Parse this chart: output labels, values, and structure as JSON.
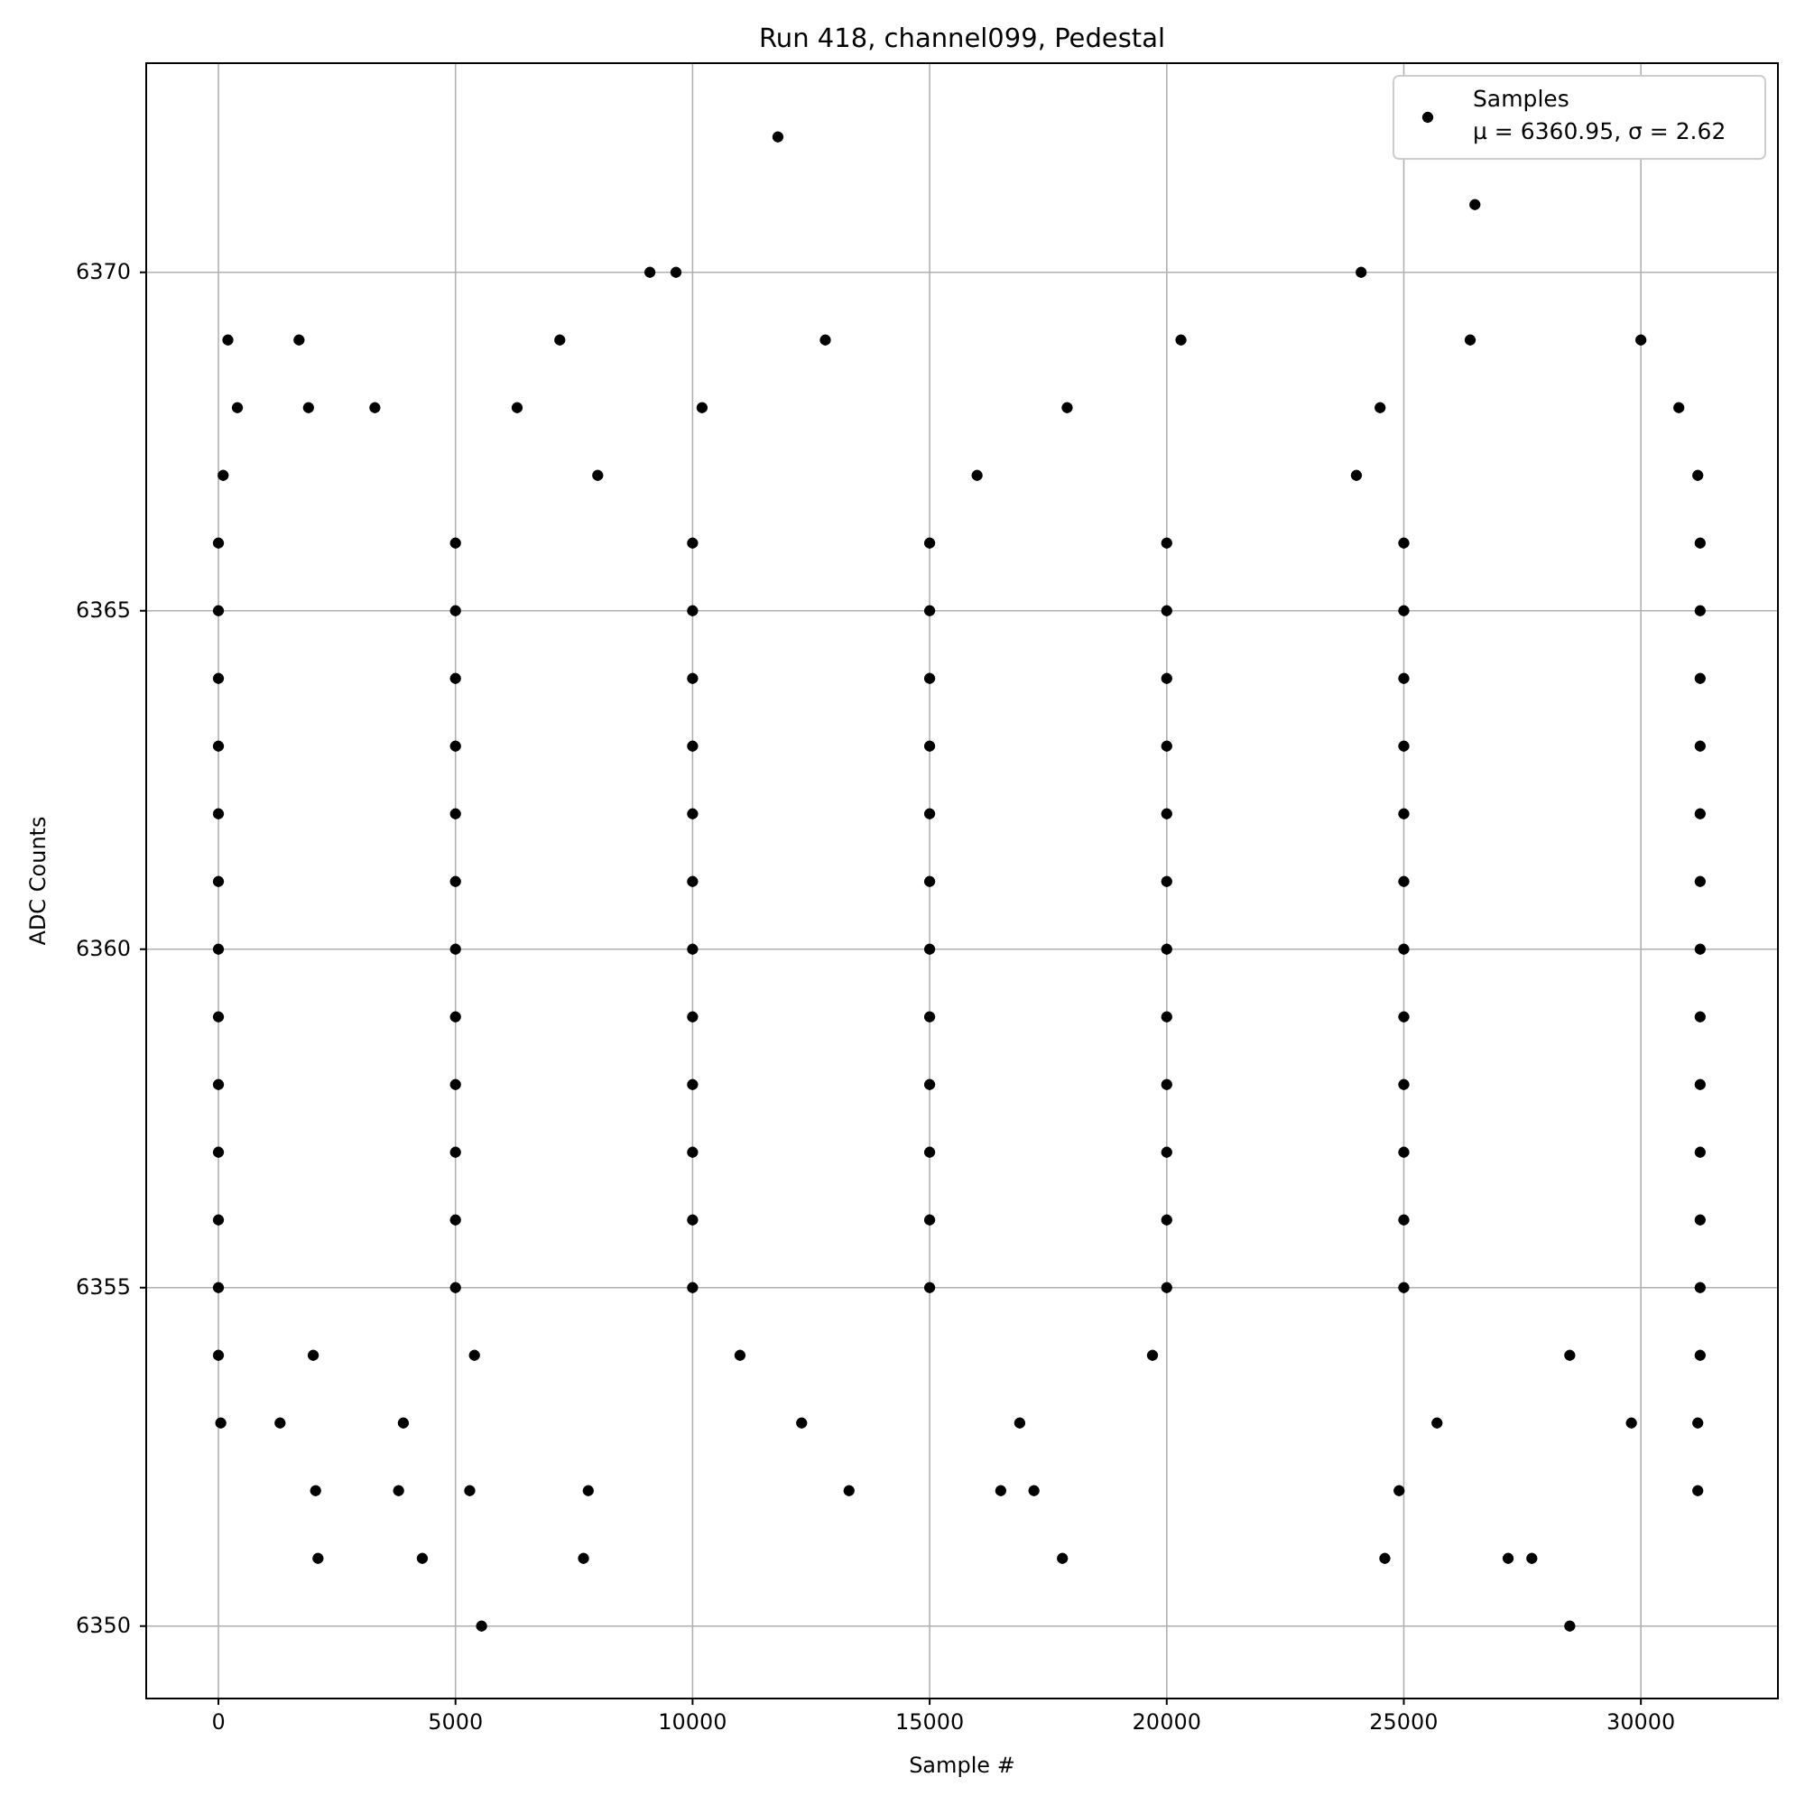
{
  "chart_data": {
    "type": "scatter",
    "title": "Run 418, channel099, Pedestal",
    "xlabel": "Sample #",
    "ylabel": "ADC Counts",
    "xlim": [
      -1523,
      32890
    ],
    "ylim": [
      6348.93,
      6373.09
    ],
    "xticks": [
      0,
      5000,
      10000,
      15000,
      20000,
      25000,
      30000
    ],
    "yticks": [
      6350,
      6355,
      6360,
      6365,
      6370
    ],
    "grid": true,
    "legend": "top right",
    "marker": "circle",
    "series": [
      {
        "name": "Samples\nμ = 6360.95, σ = 2.62",
        "color": "#000000",
        "x": [
          11800,
          26500,
          9100,
          9650,
          24100,
          5550,
          28500,
          2100,
          4300,
          7700,
          17800,
          24600,
          27200,
          27700,
          2050,
          3800,
          5300,
          7800,
          13300,
          16500,
          17200,
          24900,
          31200,
          50,
          1300,
          3900,
          12300,
          16900,
          25700,
          29800,
          31200,
          0,
          2000,
          5400,
          11000,
          19700,
          28500,
          31250,
          400,
          1900,
          3300,
          6300,
          10200,
          17900,
          24500,
          30800,
          200,
          1700,
          7200,
          12800,
          20300,
          26400,
          30000,
          0,
          5000,
          10000,
          15000,
          20000,
          25000,
          31250,
          0,
          5000,
          10000,
          15000,
          20000,
          25000,
          31250,
          0,
          5000,
          10000,
          15000,
          20000,
          25000,
          31250,
          0,
          5000,
          10000,
          15000,
          20000,
          25000,
          31250,
          0,
          5000,
          10000,
          15000,
          20000,
          25000,
          31250,
          0,
          5000,
          10000,
          15000,
          20000,
          25000,
          31250,
          0,
          5000,
          10000,
          15000,
          20000,
          25000,
          31250,
          0,
          5000,
          10000,
          15000,
          20000,
          25000,
          31250,
          0,
          5000,
          10000,
          15000,
          20000,
          25000,
          31250,
          0,
          5000,
          10000,
          15000,
          20000,
          25000,
          31250,
          0,
          5000,
          10000,
          15000,
          20000,
          25000,
          31250,
          0,
          5000,
          10000,
          15000,
          20000,
          25000,
          31250,
          100,
          8000,
          16000,
          24000,
          31200
        ],
        "values": [
          6372,
          6371,
          6370,
          6370,
          6370,
          6350,
          6350,
          6351,
          6351,
          6351,
          6351,
          6351,
          6351,
          6351,
          6352,
          6352,
          6352,
          6352,
          6352,
          6352,
          6352,
          6352,
          6352,
          6353,
          6353,
          6353,
          6353,
          6353,
          6353,
          6353,
          6353,
          6354,
          6354,
          6354,
          6354,
          6354,
          6354,
          6354,
          6368,
          6368,
          6368,
          6368,
          6368,
          6368,
          6368,
          6368,
          6369,
          6369,
          6369,
          6369,
          6369,
          6369,
          6369,
          6355,
          6355,
          6355,
          6355,
          6355,
          6355,
          6355,
          6356,
          6356,
          6356,
          6356,
          6356,
          6356,
          6356,
          6357,
          6357,
          6357,
          6357,
          6357,
          6357,
          6357,
          6358,
          6358,
          6358,
          6358,
          6358,
          6358,
          6358,
          6359,
          6359,
          6359,
          6359,
          6359,
          6359,
          6359,
          6360,
          6360,
          6360,
          6360,
          6360,
          6360,
          6360,
          6361,
          6361,
          6361,
          6361,
          6361,
          6361,
          6361,
          6362,
          6362,
          6362,
          6362,
          6362,
          6362,
          6362,
          6363,
          6363,
          6363,
          6363,
          6363,
          6363,
          6363,
          6364,
          6364,
          6364,
          6364,
          6364,
          6364,
          6364,
          6365,
          6365,
          6365,
          6365,
          6365,
          6365,
          6365,
          6366,
          6366,
          6366,
          6366,
          6366,
          6366,
          6366,
          6367,
          6367,
          6367,
          6367,
          6367
        ]
      }
    ]
  }
}
